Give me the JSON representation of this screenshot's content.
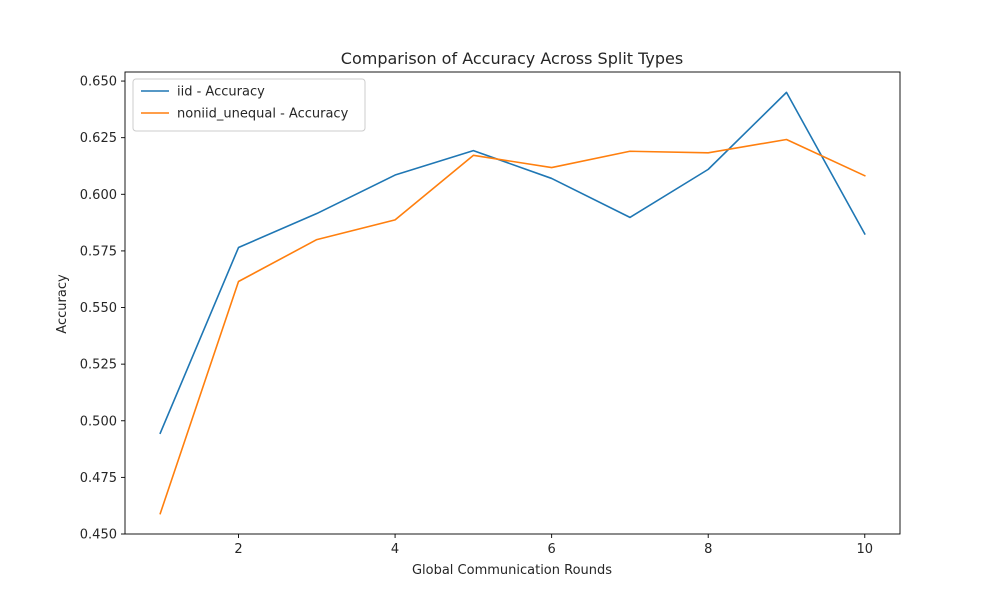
{
  "chart_data": {
    "type": "line",
    "title": "Comparison of Accuracy Across Split Types",
    "xlabel": "Global Communication Rounds",
    "ylabel": "Accuracy",
    "x": [
      1,
      2,
      3,
      4,
      5,
      6,
      7,
      8,
      9,
      10
    ],
    "xlim": [
      0.55,
      10.45
    ],
    "ylim": [
      0.45,
      0.654
    ],
    "xticks": [
      2,
      4,
      6,
      8,
      10
    ],
    "xtick_labels": [
      "2",
      "4",
      "6",
      "8",
      "10"
    ],
    "yticks": [
      0.45,
      0.475,
      0.5,
      0.525,
      0.55,
      0.575,
      0.6,
      0.625,
      0.65
    ],
    "ytick_labels": [
      "0.450",
      "0.475",
      "0.500",
      "0.525",
      "0.550",
      "0.575",
      "0.600",
      "0.625",
      "0.650"
    ],
    "grid": false,
    "legend_position": "top-left",
    "series": [
      {
        "name": "iid - Accuracy",
        "color": "#1f77b4",
        "values": [
          0.4945,
          0.5765,
          0.5915,
          0.6085,
          0.6193,
          0.607,
          0.5898,
          0.611,
          0.645,
          0.5825
        ]
      },
      {
        "name": "noniid_unequal - Accuracy",
        "color": "#ff7f0e",
        "values": [
          0.459,
          0.5615,
          0.58,
          0.5887,
          0.6172,
          0.6118,
          0.619,
          0.6183,
          0.6242,
          0.6082
        ]
      }
    ]
  }
}
